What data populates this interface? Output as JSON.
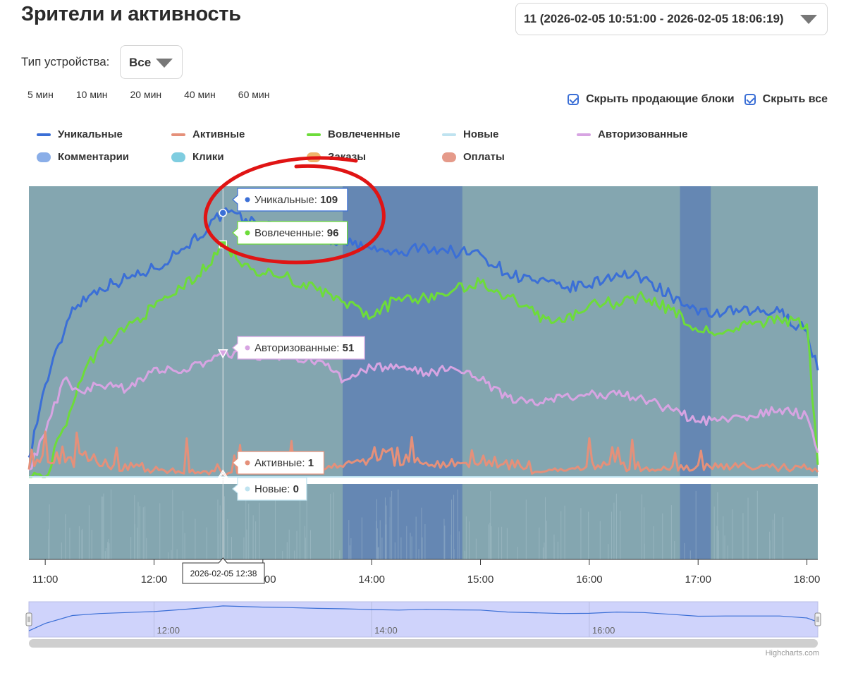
{
  "header": {
    "title": "Зрители и активность"
  },
  "session_select": {
    "value": "11 (2026-02-05 10:51:00 - 2026-02-05 18:06:19)",
    "icon": "caret-down-icon"
  },
  "device_filter": {
    "label": "Тип устройства:",
    "value": "Все",
    "icon": "caret-down-icon"
  },
  "intervals": [
    {
      "label": "5 мин",
      "active": true
    },
    {
      "label": "10 мин",
      "active": false
    },
    {
      "label": "20 мин",
      "active": false
    },
    {
      "label": "40 мин",
      "active": false
    },
    {
      "label": "60 мин",
      "active": false
    }
  ],
  "toggles": [
    {
      "label": "Скрыть продающие блоки",
      "checked": true
    },
    {
      "label": "Скрыть все",
      "checked": true
    }
  ],
  "credits": "Highcharts.com",
  "chart_data": {
    "type": "line",
    "x_range": [
      "2026-02-05 10:51",
      "2026-02-05 18:06"
    ],
    "x_ticks": [
      "11:00",
      "12:00",
      "13:00",
      "14:00",
      "15:00",
      "16:00",
      "17:00",
      "18:00"
    ],
    "navigator_ticks": [
      "12:00",
      "14:00",
      "16:00"
    ],
    "ylim": [
      0,
      120
    ],
    "legend": {
      "placement": "top"
    },
    "legend_items": [
      {
        "name": "Уникальные",
        "symbol": "line",
        "color": "#3b6fd6"
      },
      {
        "name": "Активные",
        "symbol": "line",
        "color": "#e5907a"
      },
      {
        "name": "Вовлеченные",
        "symbol": "line",
        "color": "#6ddc3a"
      },
      {
        "name": "Новые",
        "symbol": "line",
        "color": "#bfe3f0"
      },
      {
        "name": "Авторизованные",
        "symbol": "line",
        "color": "#d7a4e2"
      },
      {
        "name": "Комментарии",
        "symbol": "area",
        "color": "#8aaee8"
      },
      {
        "name": "Клики",
        "symbol": "area",
        "color": "#7fcde0"
      },
      {
        "name": "Заказы",
        "symbol": "area",
        "color": "#efb46a"
      },
      {
        "name": "Оплаты",
        "symbol": "area",
        "color": "#e59a8a"
      }
    ],
    "series": [
      {
        "name": "Уникальные",
        "color": "#3b6fd6",
        "points": [
          [
            "10:51",
            8
          ],
          [
            "11:00",
            38
          ],
          [
            "11:15",
            70
          ],
          [
            "11:30",
            78
          ],
          [
            "11:45",
            82
          ],
          [
            "12:00",
            86
          ],
          [
            "12:15",
            94
          ],
          [
            "12:30",
            103
          ],
          [
            "12:38",
            109
          ],
          [
            "13:00",
            104
          ],
          [
            "13:15",
            102
          ],
          [
            "13:30",
            99
          ],
          [
            "13:45",
            97
          ],
          [
            "14:00",
            94
          ],
          [
            "14:15",
            92
          ],
          [
            "14:30",
            95
          ],
          [
            "14:45",
            93
          ],
          [
            "15:00",
            92
          ],
          [
            "15:15",
            84
          ],
          [
            "15:30",
            81
          ],
          [
            "15:45",
            78
          ],
          [
            "16:00",
            79
          ],
          [
            "16:15",
            84
          ],
          [
            "16:30",
            82
          ],
          [
            "16:45",
            75
          ],
          [
            "17:00",
            67
          ],
          [
            "17:15",
            68
          ],
          [
            "17:30",
            68
          ],
          [
            "17:45",
            68
          ],
          [
            "18:00",
            60
          ],
          [
            "18:06",
            44
          ]
        ]
      },
      {
        "name": "Вовлеченные",
        "color": "#6ddc3a",
        "points": [
          [
            "10:51",
            0
          ],
          [
            "11:00",
            0
          ],
          [
            "11:10",
            20
          ],
          [
            "11:20",
            40
          ],
          [
            "11:30",
            54
          ],
          [
            "11:45",
            62
          ],
          [
            "12:00",
            70
          ],
          [
            "12:15",
            78
          ],
          [
            "12:30",
            87
          ],
          [
            "12:38",
            96
          ],
          [
            "12:50",
            88
          ],
          [
            "13:00",
            84
          ],
          [
            "13:15",
            82
          ],
          [
            "13:30",
            77
          ],
          [
            "13:45",
            72
          ],
          [
            "14:00",
            66
          ],
          [
            "14:15",
            74
          ],
          [
            "14:30",
            74
          ],
          [
            "14:45",
            77
          ],
          [
            "15:00",
            80
          ],
          [
            "15:15",
            75
          ],
          [
            "15:30",
            67
          ],
          [
            "15:45",
            64
          ],
          [
            "16:00",
            71
          ],
          [
            "16:15",
            72
          ],
          [
            "16:30",
            74
          ],
          [
            "16:45",
            69
          ],
          [
            "17:00",
            60
          ],
          [
            "17:15",
            60
          ],
          [
            "17:30",
            63
          ],
          [
            "17:45",
            65
          ],
          [
            "18:00",
            63
          ],
          [
            "18:06",
            5
          ]
        ]
      },
      {
        "name": "Авторизованные",
        "color": "#d7a4e2",
        "points": [
          [
            "10:51",
            3
          ],
          [
            "11:00",
            18
          ],
          [
            "11:10",
            40
          ],
          [
            "11:20",
            35
          ],
          [
            "11:30",
            38
          ],
          [
            "11:45",
            36
          ],
          [
            "12:00",
            45
          ],
          [
            "12:15",
            43
          ],
          [
            "12:30",
            48
          ],
          [
            "12:38",
            51
          ],
          [
            "13:00",
            50
          ],
          [
            "13:15",
            50
          ],
          [
            "13:30",
            48
          ],
          [
            "13:45",
            40
          ],
          [
            "14:00",
            45
          ],
          [
            "14:15",
            45
          ],
          [
            "14:30",
            43
          ],
          [
            "14:45",
            45
          ],
          [
            "15:00",
            40
          ],
          [
            "15:15",
            33
          ],
          [
            "15:30",
            30
          ],
          [
            "15:45",
            33
          ],
          [
            "16:00",
            34
          ],
          [
            "16:15",
            34
          ],
          [
            "16:30",
            32
          ],
          [
            "16:45",
            28
          ],
          [
            "17:00",
            23
          ],
          [
            "17:15",
            24
          ],
          [
            "17:30",
            25
          ],
          [
            "17:45",
            28
          ],
          [
            "18:00",
            25
          ],
          [
            "18:06",
            10
          ]
        ]
      },
      {
        "name": "Активные",
        "color": "#e5907a",
        "points": [
          [
            "10:51",
            5
          ],
          [
            "11:00",
            8
          ],
          [
            "11:30",
            5
          ],
          [
            "11:55",
            3
          ],
          [
            "12:38",
            1
          ],
          [
            "13:00",
            4
          ],
          [
            "13:30",
            3
          ],
          [
            "14:00",
            9
          ],
          [
            "14:30",
            5
          ],
          [
            "15:00",
            6
          ],
          [
            "15:30",
            2
          ],
          [
            "16:00",
            5
          ],
          [
            "16:30",
            3
          ],
          [
            "17:00",
            4
          ],
          [
            "17:30",
            4
          ],
          [
            "18:00",
            3
          ],
          [
            "18:06",
            2
          ]
        ]
      },
      {
        "name": "Новые",
        "color": "#bfe3f0",
        "points": [
          [
            "10:51",
            0
          ],
          [
            "12:38",
            0
          ],
          [
            "18:06",
            0
          ]
        ]
      }
    ],
    "highlight_bands": [
      [
        "13:44",
        "14:50"
      ],
      [
        "16:50",
        "17:07"
      ]
    ],
    "tooltip": {
      "time": "2026-02-05 12:38",
      "entries": [
        {
          "name": "Уникальные",
          "value": 109,
          "color": "#3b6fd6"
        },
        {
          "name": "Вовлеченные",
          "value": 96,
          "color": "#6ddc3a"
        },
        {
          "name": "Авторизованные",
          "value": 51,
          "color": "#d7a4e2"
        },
        {
          "name": "Активные",
          "value": 1,
          "color": "#e5907a"
        },
        {
          "name": "Новые",
          "value": 0,
          "color": "#bfe3f0"
        }
      ]
    },
    "annotation": {
      "shape": "red-ellipse-circle",
      "color": "#e01414"
    }
  }
}
